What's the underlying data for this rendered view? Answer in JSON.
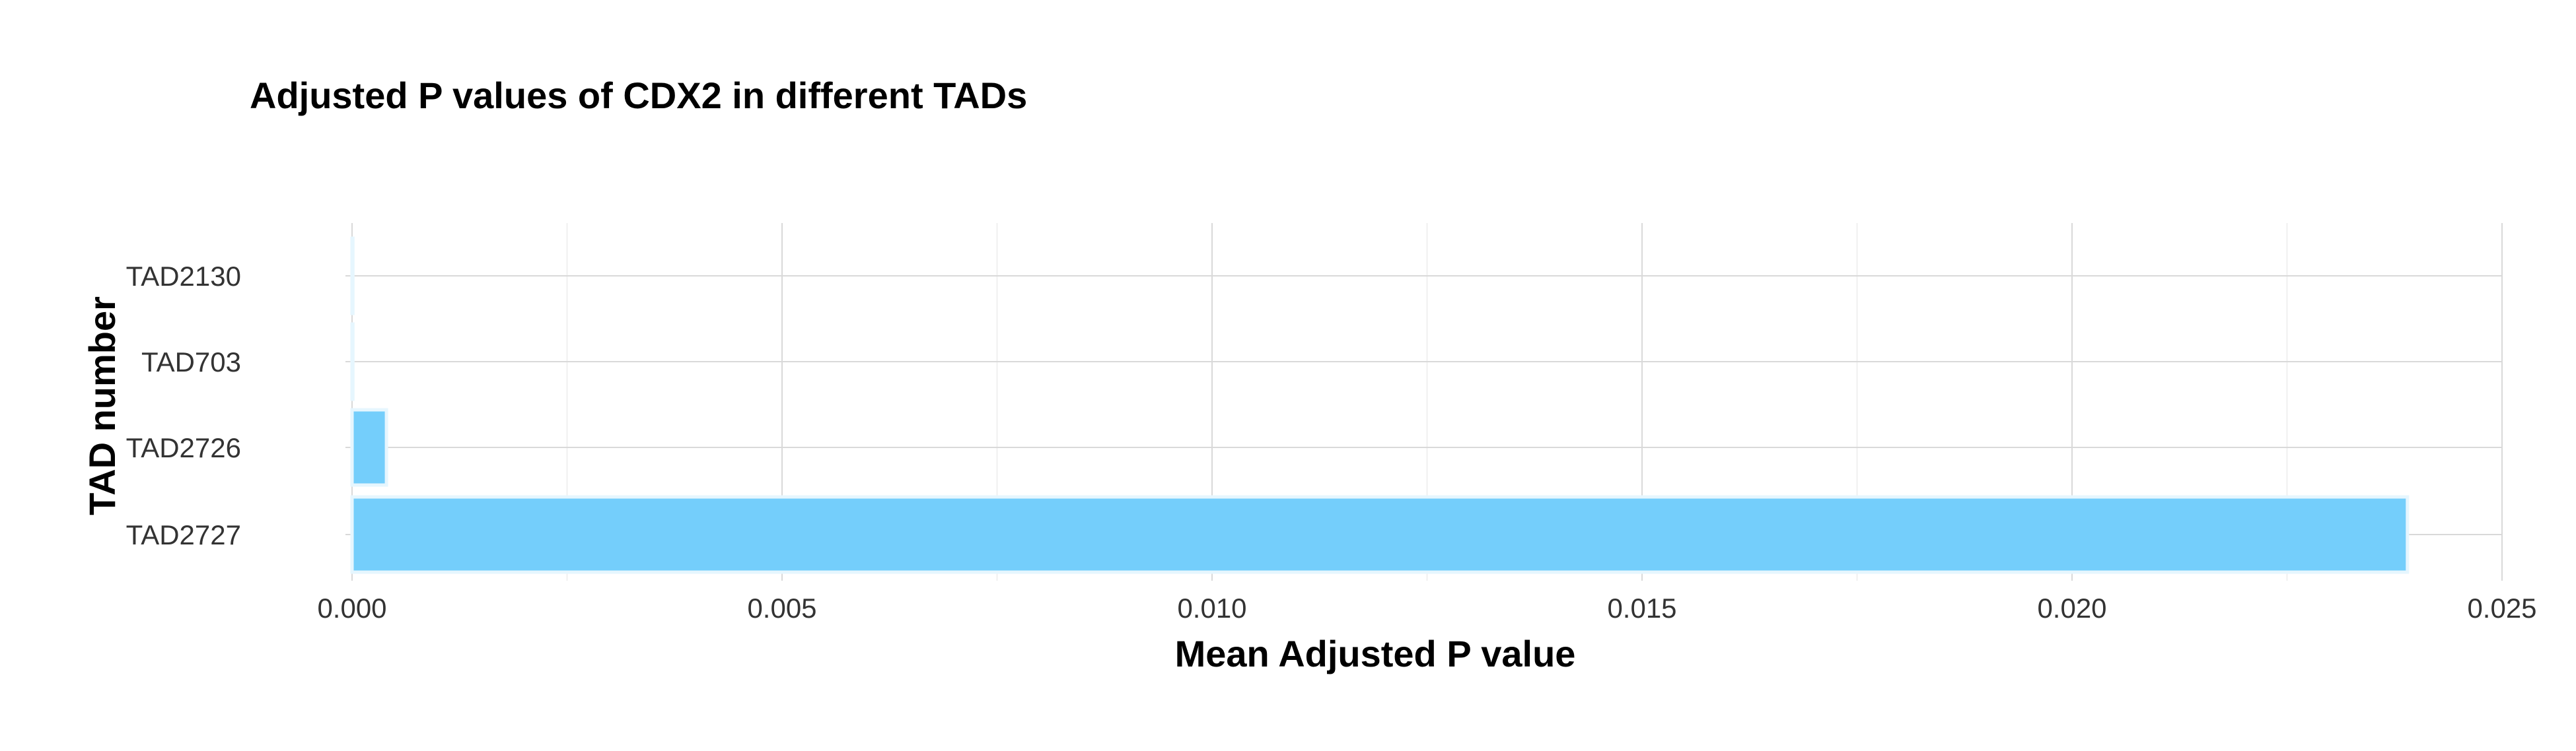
{
  "chart_data": {
    "type": "bar",
    "orientation": "horizontal",
    "title": "Adjusted P values of CDX2 in different TADs",
    "xlabel": "Mean Adjusted P value",
    "ylabel": "TAD number",
    "categories": [
      "TAD2130",
      "TAD703",
      "TAD2726",
      "TAD2727"
    ],
    "values": [
      1e-05,
      1e-05,
      0.0004,
      0.0239
    ],
    "xlim": [
      0,
      0.025
    ],
    "xticks": [
      0.0,
      0.005,
      0.01,
      0.015,
      0.02,
      0.025
    ],
    "xtick_labels": [
      "0.000",
      "0.005",
      "0.010",
      "0.015",
      "0.020",
      "0.025"
    ],
    "grid": true,
    "legend": "none",
    "bar_color": "#74CEFB",
    "bar_edge_color": "#E6F6FE"
  }
}
